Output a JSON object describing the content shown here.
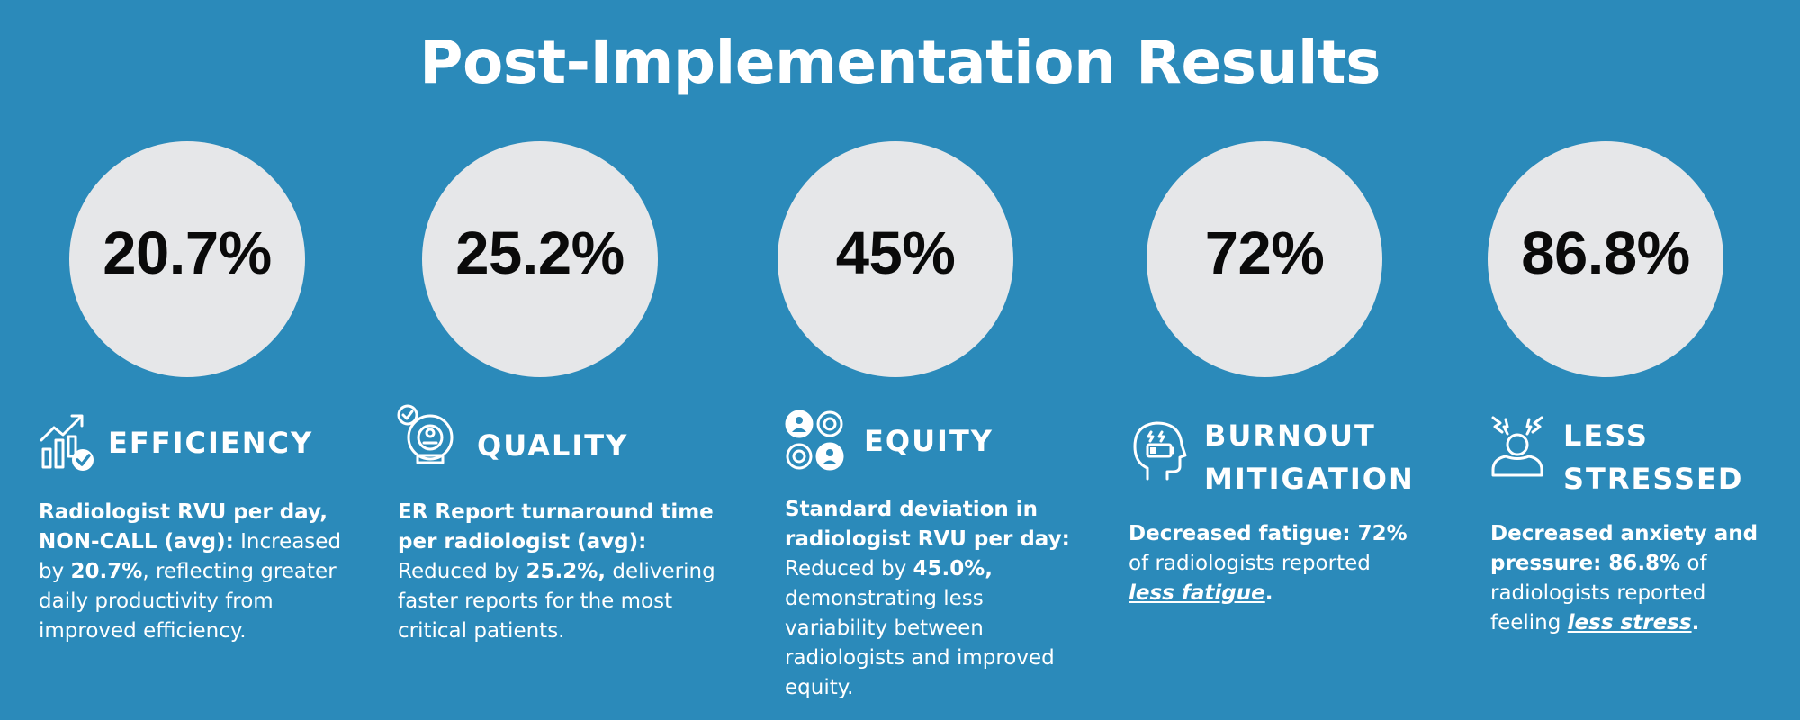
{
  "page": {
    "title": "Post-Implementation Results",
    "background_color": "#2b8aba",
    "circle_color": "#e6e7e9"
  },
  "metrics": [
    {
      "value": "20.7%",
      "icon": "growth-chart-check-icon",
      "heading": "EFFICIENCY",
      "heading_line2": "",
      "desc_bold": "Radiologist RVU per day, NON-CALL (avg):",
      "desc_text_1": " Increased by ",
      "desc_bold_2": "20.7%",
      "desc_text_2": ", reflecting greater daily productivity from improved efficiency."
    },
    {
      "value": "25.2%",
      "icon": "mri-scanner-check-icon",
      "heading": "QUALITY",
      "heading_line2": "",
      "desc_bold": "ER Report turnaround time per radiologist (avg):",
      "desc_text_1": " Reduced by ",
      "desc_bold_2": "25.2%,",
      "desc_text_2": " delivering faster reports for the most critical patients."
    },
    {
      "value": "45%",
      "icon": "people-chat-icon",
      "heading": "EQUITY",
      "heading_line2": "",
      "desc_bold": "Standard deviation in radiologist RVU per day:",
      "desc_text_1": " Reduced by ",
      "desc_bold_2": "45.0%,",
      "desc_text_2": " demonstrating less variability between radiologists and improved equity."
    },
    {
      "value": "72%",
      "icon": "head-low-battery-icon",
      "heading": "BURNOUT",
      "heading_line2": "MITIGATION",
      "desc_bold": "Decreased fatigue: 72%",
      "desc_text_1": " of radiologists reported ",
      "desc_em": "less fatigue",
      "desc_text_2": "."
    },
    {
      "value": "86.8%",
      "icon": "stressed-person-icon",
      "heading": "LESS",
      "heading_line2": "STRESSED",
      "desc_bold": "Decreased anxiety and pressure: 86.8%",
      "desc_text_1": " of radiologists reported feeling ",
      "desc_em": "less stress",
      "desc_text_2": "."
    }
  ]
}
